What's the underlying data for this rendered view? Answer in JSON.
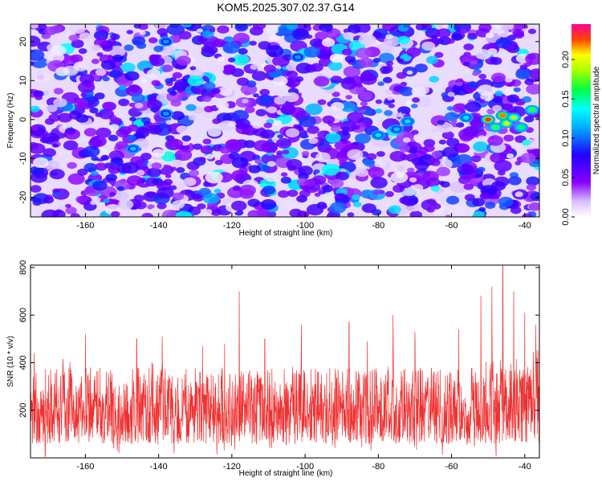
{
  "title": "KOM5.2025.307.02.37.G14",
  "chart_data": [
    {
      "type": "heatmap",
      "xlabel": "Height of straight line (km)",
      "ylabel": "Frequency (Hz)",
      "xlim": [
        -175,
        -36
      ],
      "ylim": [
        -25,
        24.5
      ],
      "xticks": [
        -160,
        -140,
        -120,
        -100,
        -80,
        -60,
        -40
      ],
      "yticks": [
        -20,
        -10,
        0,
        10,
        20
      ],
      "colorbar": {
        "label": "Normalized spectral amplitude",
        "range": [
          0,
          0.245
        ],
        "ticks": [
          0,
          0.05,
          0.1,
          0.15,
          0.2
        ],
        "tick_labels": [
          "0.00",
          "0.05",
          "0.10",
          "0.15",
          "0.20"
        ],
        "colors": [
          "#ffffff",
          "#8800ff",
          "#0000ff",
          "#00ffff",
          "#00ff00",
          "#ffff00",
          "#ff0000",
          "#ff00aa"
        ]
      },
      "hotspots": [
        {
          "x": -147,
          "y": -7.5,
          "value": 0.12
        },
        {
          "x": -138,
          "y": 20,
          "value": 0.11
        },
        {
          "x": -138,
          "y": 1.5,
          "value": 0.11
        },
        {
          "x": -102,
          "y": 16,
          "value": 0.11
        },
        {
          "x": -80,
          "y": -4,
          "value": 0.13
        },
        {
          "x": -75,
          "y": -2.5,
          "value": 0.12
        },
        {
          "x": -72,
          "y": -0.5,
          "value": 0.13
        },
        {
          "x": -56,
          "y": 0.5,
          "value": 0.13
        },
        {
          "x": -50,
          "y": 0,
          "value": 0.23
        },
        {
          "x": -48,
          "y": -2,
          "value": 0.17
        },
        {
          "x": -46,
          "y": 1,
          "value": 0.22
        },
        {
          "x": -45,
          "y": -1,
          "value": 0.2
        },
        {
          "x": -43,
          "y": 0.5,
          "value": 0.19
        },
        {
          "x": -41,
          "y": -2,
          "value": 0.16
        },
        {
          "x": -38,
          "y": 2.5,
          "value": 0.17
        }
      ]
    },
    {
      "type": "line",
      "xlabel": "Height of straight line (km)",
      "ylabel": "SNR (10 * v/v)",
      "xlim": [
        -175,
        -36
      ],
      "ylim": [
        0,
        810
      ],
      "xticks": [
        -160,
        -140,
        -120,
        -100,
        -80,
        -60,
        -40
      ],
      "yticks": [
        200,
        400,
        600,
        800
      ],
      "color": "#f03030",
      "series": [
        {
          "baseline": 210,
          "noise_band": [
            60,
            380
          ],
          "peaks": [
            {
              "x": -174,
              "y": 440
            },
            {
              "x": -160,
              "y": 520
            },
            {
              "x": -146,
              "y": 500
            },
            {
              "x": -139,
              "y": 510
            },
            {
              "x": -128,
              "y": 470
            },
            {
              "x": -122,
              "y": 480
            },
            {
              "x": -118,
              "y": 700
            },
            {
              "x": -111,
              "y": 500
            },
            {
              "x": -101,
              "y": 560
            },
            {
              "x": -88,
              "y": 570
            },
            {
              "x": -83,
              "y": 490
            },
            {
              "x": -76,
              "y": 600
            },
            {
              "x": -70,
              "y": 530
            },
            {
              "x": -58,
              "y": 540
            },
            {
              "x": -52,
              "y": 680
            },
            {
              "x": -49,
              "y": 720
            },
            {
              "x": -46,
              "y": 810
            },
            {
              "x": -43,
              "y": 700
            },
            {
              "x": -40,
              "y": 610
            },
            {
              "x": -37,
              "y": 560
            }
          ]
        }
      ]
    }
  ]
}
